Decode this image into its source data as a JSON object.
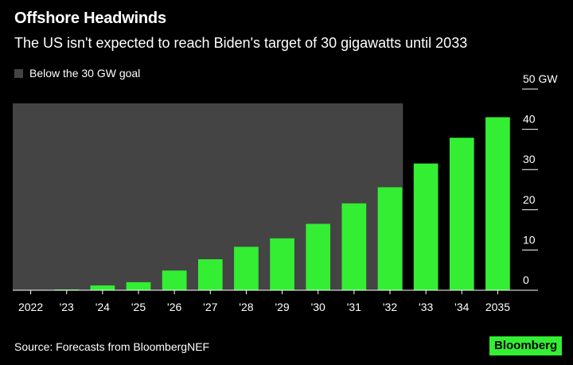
{
  "header": {
    "title": "Offshore Headwinds",
    "subtitle": "The US isn't expected to reach Biden's target of 30 gigawatts until 2033"
  },
  "legend": {
    "label": "Below the 30 GW goal",
    "color": "#444444"
  },
  "footer": {
    "source": "Source: Forecasts from BloombergNEF",
    "brand": "Bloomberg",
    "brand_color": "#33ee33"
  },
  "chart_data": {
    "type": "bar",
    "categories": [
      "2022",
      "'23",
      "'24",
      "'25",
      "'26",
      "'27",
      "'28",
      "'29",
      "'30",
      "'31",
      "'32",
      "'33",
      "'34",
      "2035"
    ],
    "values": [
      0.1,
      0.2,
      1.2,
      2.0,
      4.9,
      7.7,
      10.8,
      12.9,
      16.5,
      21.6,
      25.6,
      31.5,
      37.9,
      43.0
    ],
    "ylim": [
      0,
      50
    ],
    "yticks": [
      0,
      10,
      20,
      30,
      40,
      50
    ],
    "ytick_labels": [
      "0",
      "10",
      "20",
      "30",
      "40",
      "50 GW"
    ],
    "bar_color": "#33ee33",
    "shaded_region": {
      "label": "Below the 30 GW goal",
      "from_category": "2022",
      "to_category": "'32",
      "color": "#444444"
    },
    "y_axis_side": "right",
    "grid": false
  }
}
